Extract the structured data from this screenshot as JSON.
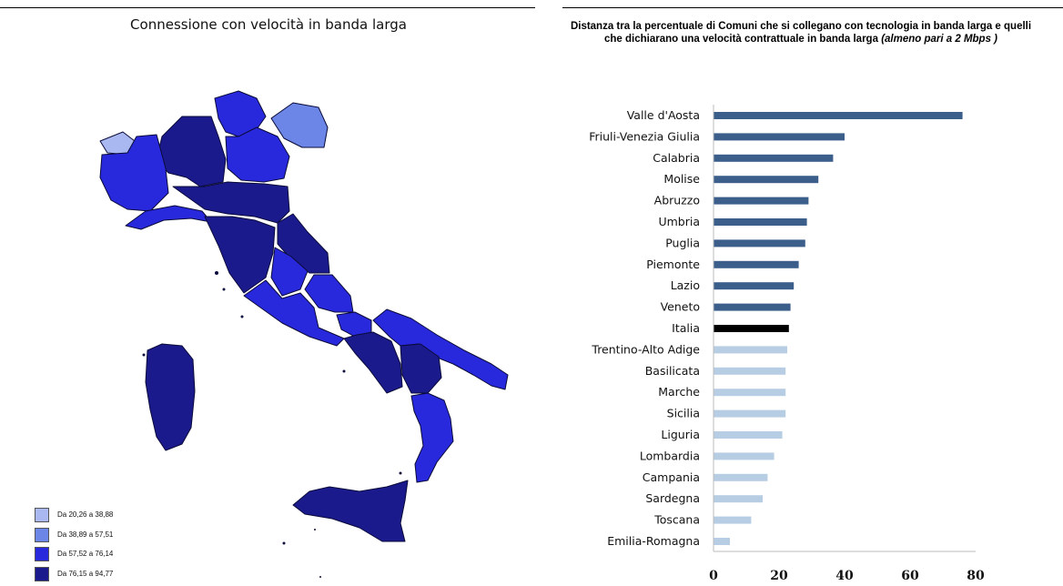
{
  "map": {
    "title": "Connessione con velocità in banda larga",
    "legend": [
      {
        "label": "Da 20,26 a 38,88",
        "color": "#aab8f2"
      },
      {
        "label": "Da 38,89 a 57,51",
        "color": "#6b86e6"
      },
      {
        "label": "Da 57,52 a 76,14",
        "color": "#2828dc"
      },
      {
        "label": "Da 76,15 a 94,77",
        "color": "#1a1a8c"
      }
    ]
  },
  "chart_data": {
    "type": "bar",
    "orientation": "horizontal",
    "title_main": "Distanza tra la percentuale  di Comuni che si collegano con tecnologia in banda larga e quelli che dichiarano una velocità contrattuale  in banda larga",
    "title_italic": "(almeno pari a 2 Mbps )",
    "categories": [
      "Valle d'Aosta",
      "Friuli-Venezia Giulia",
      "Calabria",
      "Molise",
      "Abruzzo",
      "Umbria",
      "Puglia",
      "Piemonte",
      "Lazio",
      "Veneto",
      "Italia",
      "Trentino-Alto Adige",
      "Basilicata",
      "Marche",
      "Sicilia",
      "Liguria",
      "Lombardia",
      "Campania",
      "Sardegna",
      "Toscana",
      "Emilia-Romagna"
    ],
    "values": [
      76,
      40,
      36.5,
      32,
      29,
      28.5,
      28,
      26,
      24.5,
      23.5,
      23,
      22.5,
      22,
      22,
      22,
      21,
      18.5,
      16.5,
      15,
      11.5,
      5
    ],
    "xlim": [
      0,
      80
    ],
    "xticks": [
      "0",
      "20",
      "40",
      "60",
      "80"
    ],
    "colors": {
      "above": "#3b5f8a",
      "italia": "#000000",
      "below": "#b7cde3"
    },
    "grid": false
  }
}
